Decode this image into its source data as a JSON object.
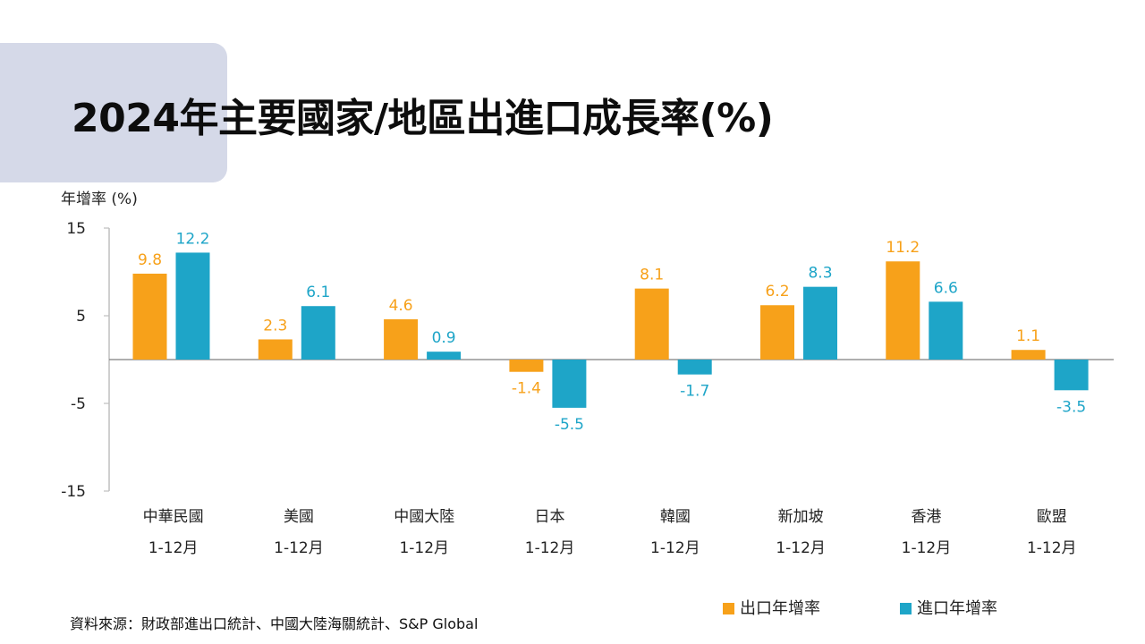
{
  "title": "2024年主要國家/地區出進口成長率(%)",
  "source": "資料來源：財政部進出口統計、中國大陸海關統計、S&P Global",
  "colors": {
    "export": "#f7a11a",
    "import": "#1ea5c8"
  },
  "chart_data": {
    "type": "bar",
    "ylabel": "年增率 (%)",
    "ylim": [
      -15,
      15
    ],
    "yticks": [
      "15",
      "5",
      "-5",
      "-15"
    ],
    "categories": [
      "中華民國",
      "美國",
      "中國大陸",
      "日本",
      "韓國",
      "新加坡",
      "香港",
      "歐盟"
    ],
    "periods": [
      "1-12月",
      "1-12月",
      "1-12月",
      "1-12月",
      "1-12月",
      "1-12月",
      "1-12月",
      "1-12月"
    ],
    "series": [
      {
        "name": "出口年增率",
        "values": [
          9.8,
          2.3,
          4.6,
          -1.4,
          8.1,
          6.2,
          11.2,
          1.1
        ]
      },
      {
        "name": "進口年增率",
        "values": [
          12.2,
          6.1,
          0.9,
          -5.5,
          -1.7,
          8.3,
          6.6,
          -3.5
        ]
      }
    ],
    "legend_position": "bottom-right",
    "grid": false
  }
}
